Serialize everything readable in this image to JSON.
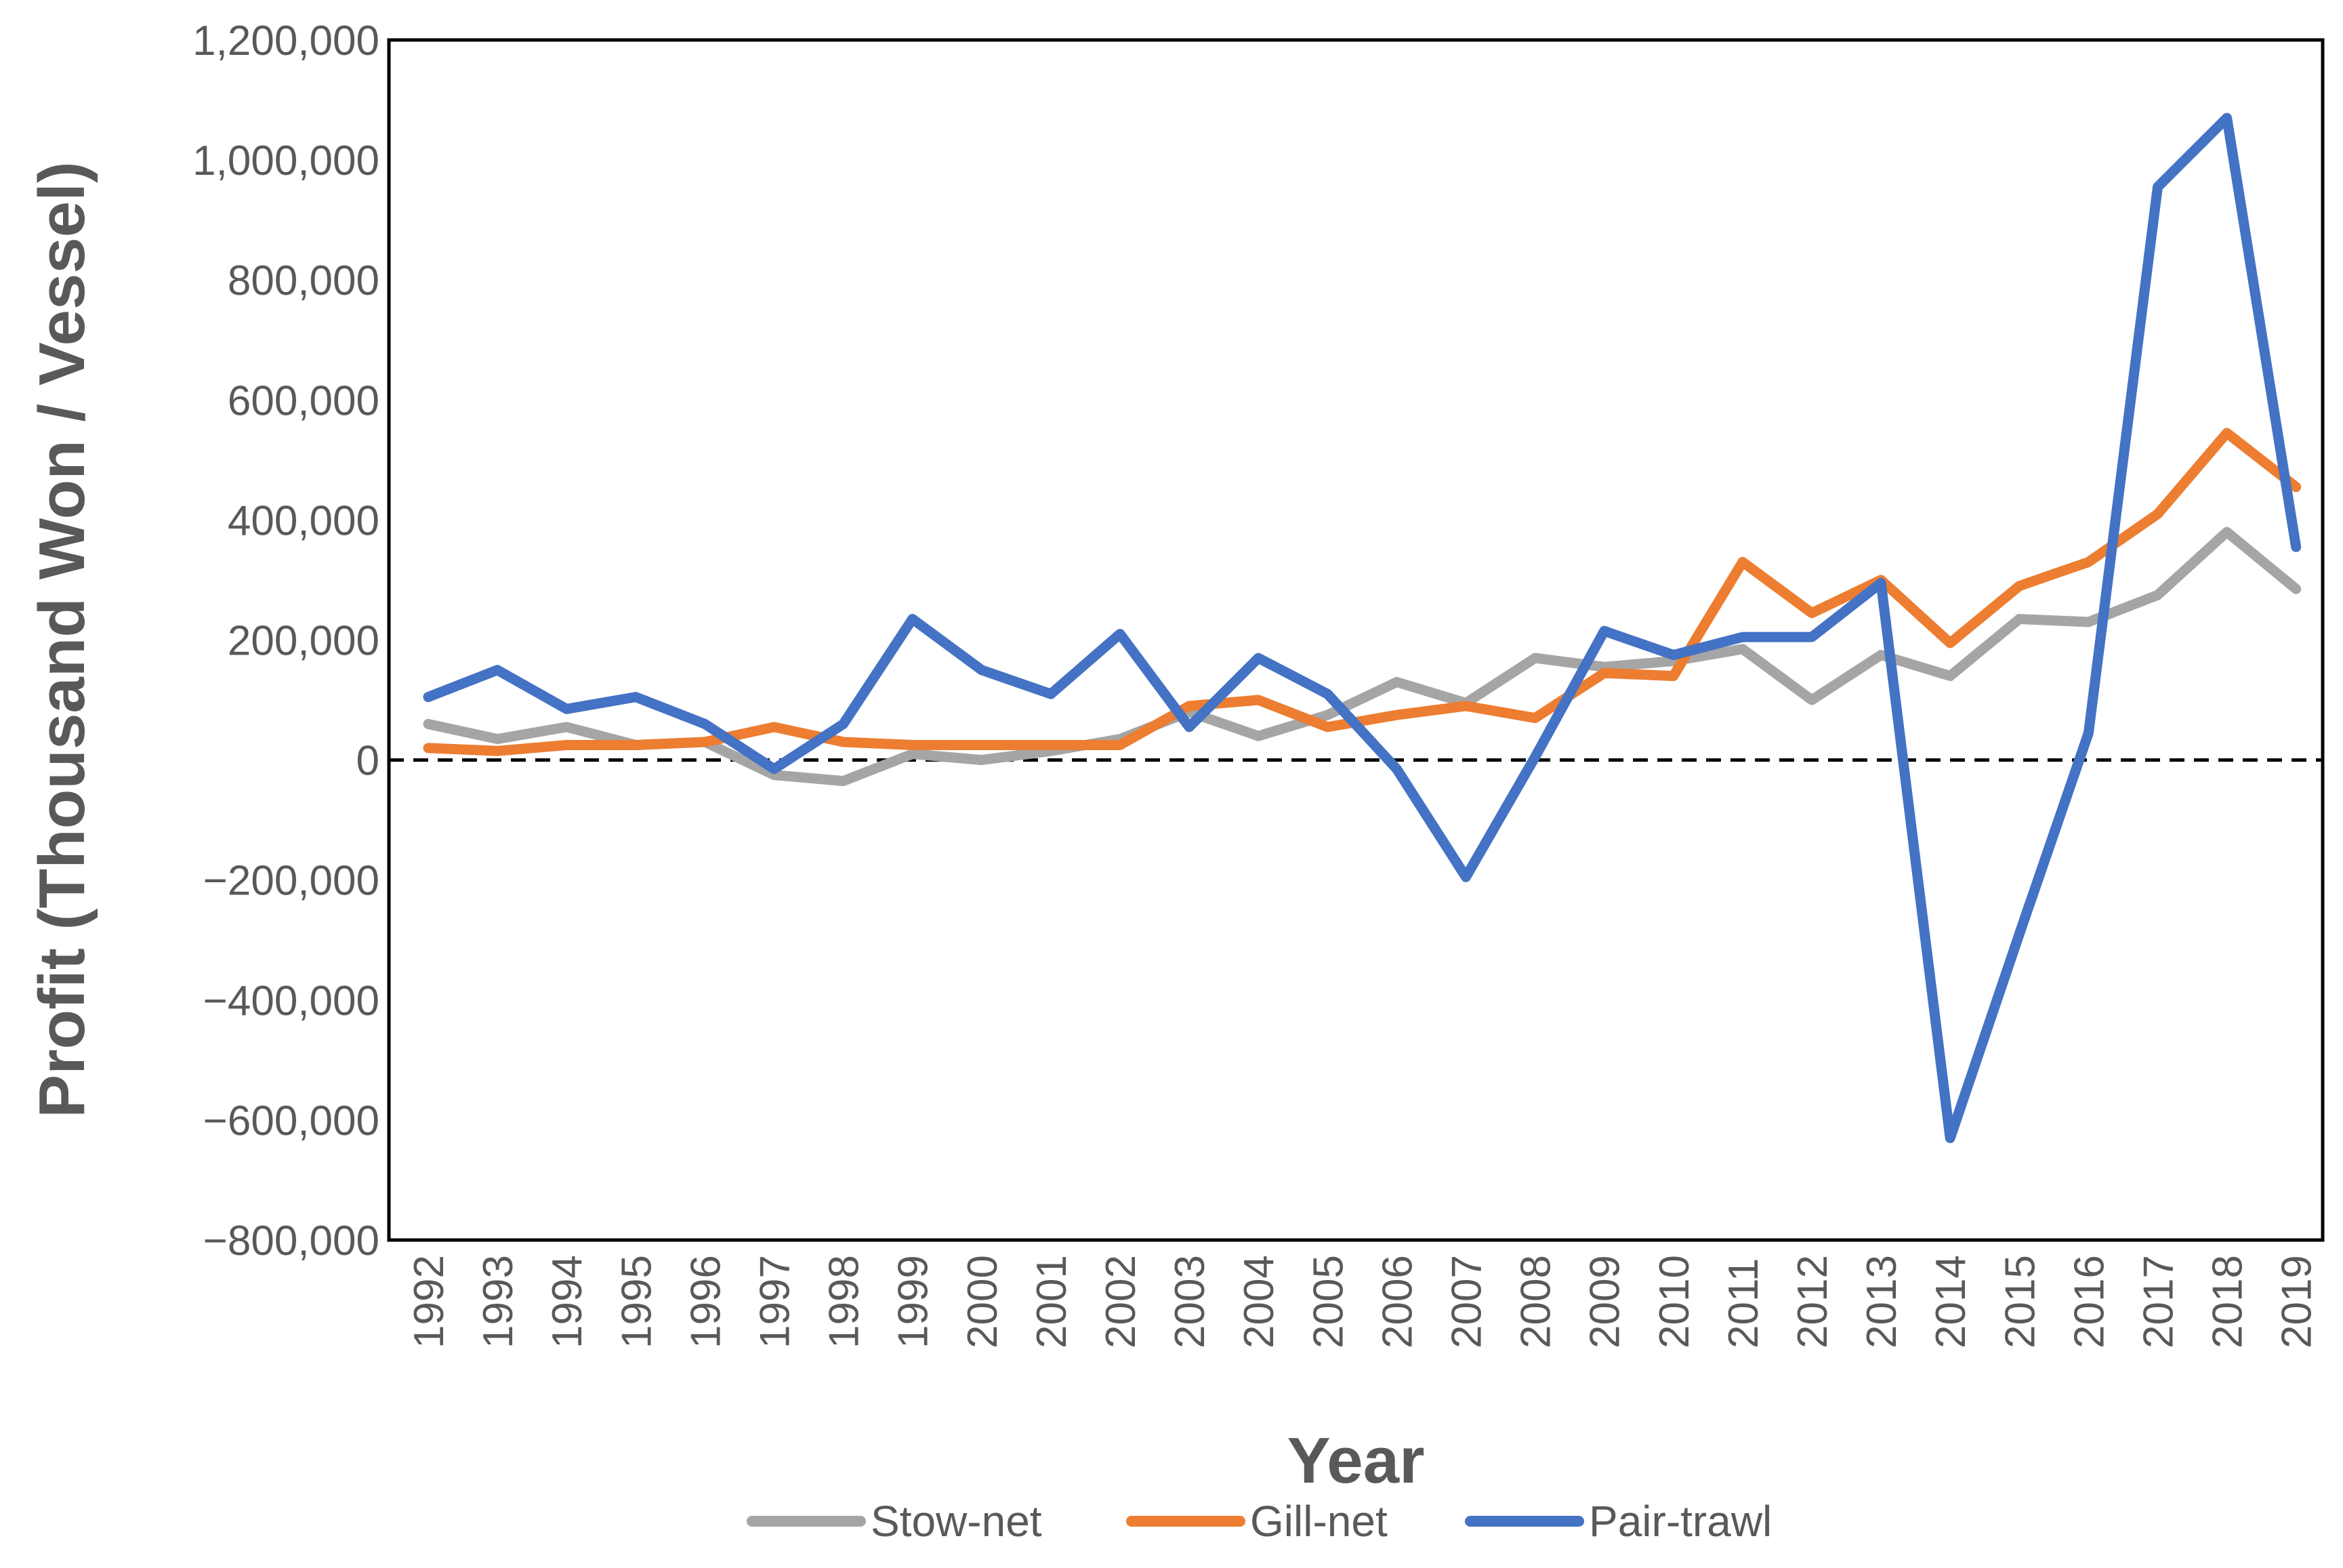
{
  "chart_data": {
    "type": "line",
    "title": "",
    "xlabel": "Year",
    "ylabel": "Profit (Thousand Won / Vessel)",
    "ylim": [
      -800000,
      1200000
    ],
    "yticks": [
      -800000,
      -600000,
      -400000,
      -200000,
      0,
      200000,
      400000,
      600000,
      800000,
      1000000,
      1200000
    ],
    "ytick_labels": [
      "−800,000",
      "−600,000",
      "−400,000",
      "−200,000",
      "0",
      "200,000",
      "400,000",
      "600,000",
      "800,000",
      "1,000,000",
      "1,200,000"
    ],
    "categories": [
      "1992",
      "1993",
      "1994",
      "1995",
      "1996",
      "1997",
      "1998",
      "1999",
      "2000",
      "2001",
      "2002",
      "2003",
      "2004",
      "2005",
      "2006",
      "2007",
      "2008",
      "2009",
      "2010",
      "2011",
      "2012",
      "2013",
      "2014",
      "2015",
      "2016",
      "2017",
      "2018",
      "2019"
    ],
    "zero_line": "dashed",
    "legend_position": "bottom",
    "series": [
      {
        "name": "Stow-net",
        "color": "#a5a5a5",
        "values": [
          60000,
          35000,
          55000,
          25000,
          30000,
          -25000,
          -35000,
          10000,
          0,
          15000,
          35000,
          80000,
          40000,
          75000,
          130000,
          95000,
          170000,
          155000,
          165000,
          185000,
          100000,
          175000,
          140000,
          235000,
          230000,
          275000,
          380000,
          285000
        ]
      },
      {
        "name": "Gill-net",
        "color": "#ed7d31",
        "values": [
          20000,
          15000,
          25000,
          25000,
          30000,
          55000,
          30000,
          25000,
          25000,
          25000,
          25000,
          90000,
          100000,
          55000,
          75000,
          90000,
          70000,
          145000,
          140000,
          330000,
          245000,
          300000,
          195000,
          290000,
          330000,
          410000,
          545000,
          455000
        ]
      },
      {
        "name": "Pair-trawl",
        "color": "#4472c4",
        "values": [
          105000,
          150000,
          85000,
          105000,
          60000,
          -15000,
          60000,
          235000,
          150000,
          110000,
          210000,
          55000,
          170000,
          110000,
          -15000,
          -195000,
          5000,
          215000,
          175000,
          205000,
          205000,
          295000,
          -630000,
          -290000,
          45000,
          955000,
          1070000,
          355000
        ]
      }
    ]
  }
}
